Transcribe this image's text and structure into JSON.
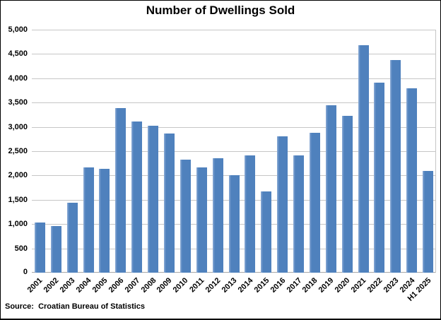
{
  "chart_data": {
    "type": "bar",
    "title": "Number of Dwellings Sold",
    "categories": [
      "2001",
      "2002",
      "2003",
      "2004",
      "2005",
      "2006",
      "2007",
      "2008",
      "2009",
      "2010",
      "2011",
      "2012",
      "2013",
      "2014",
      "2015",
      "2016",
      "2017",
      "2018",
      "2019",
      "2020",
      "2021",
      "2022",
      "2023",
      "2024",
      "H1 2025"
    ],
    "values": [
      1030,
      960,
      1440,
      2170,
      2140,
      3390,
      3110,
      3030,
      2860,
      2320,
      2170,
      2360,
      2000,
      2410,
      1670,
      2800,
      2420,
      2880,
      3450,
      3220,
      4680,
      3910,
      4370,
      3790,
      2090
    ],
    "xlabel": "",
    "ylabel": "",
    "ylim": [
      0,
      5000
    ],
    "ytick_step": 500,
    "y_tick_labels": [
      "0",
      "500",
      "1,000",
      "1,500",
      "2,000",
      "2,500",
      "3,000",
      "3,500",
      "4,000",
      "4,500",
      "5,000"
    ],
    "grid": true,
    "legend": "none",
    "x_label_rotation": 45,
    "colors": {
      "bar_fill": "#4f81bd",
      "bar_highlight": "#8cacd6",
      "gridline": "#c6c6c6",
      "axis_line": "#a6a6a6",
      "border": "#000000",
      "background": "#ffffff",
      "text": "#000000"
    }
  },
  "source_note": "Source:  Croatian Bureau of Statistics"
}
